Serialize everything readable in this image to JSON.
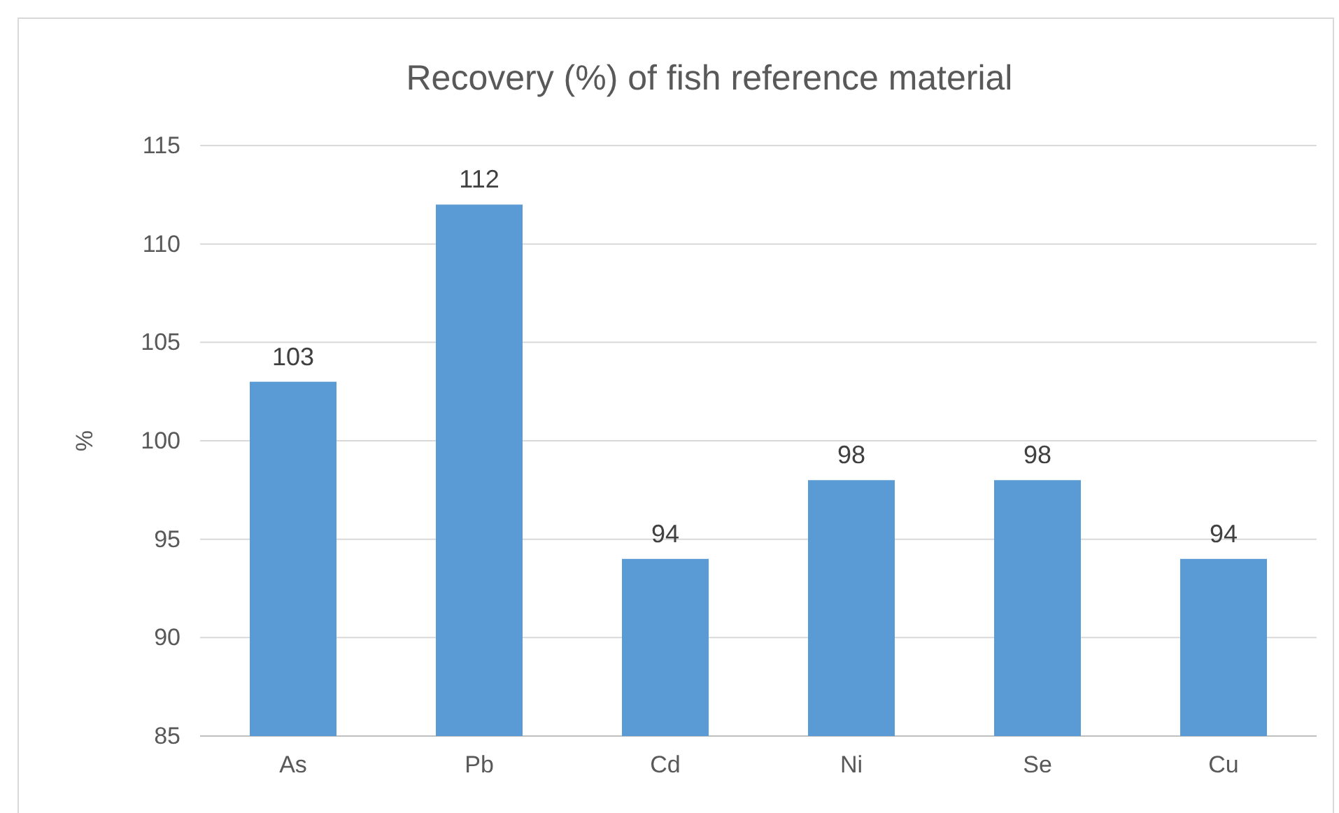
{
  "chart_data": {
    "type": "bar",
    "title": "Recovery (%) of fish reference material",
    "ylabel": "%",
    "categories": [
      "As",
      "Pb",
      "Cd",
      "Ni",
      "Se",
      "Cu"
    ],
    "values": [
      103,
      112,
      94,
      98,
      98,
      94
    ],
    "color": "#5b9bd5",
    "ylim": [
      85,
      115
    ],
    "yticks": [
      85,
      90,
      95,
      100,
      105,
      110,
      115
    ],
    "grid": "y",
    "data_labels": true
  }
}
